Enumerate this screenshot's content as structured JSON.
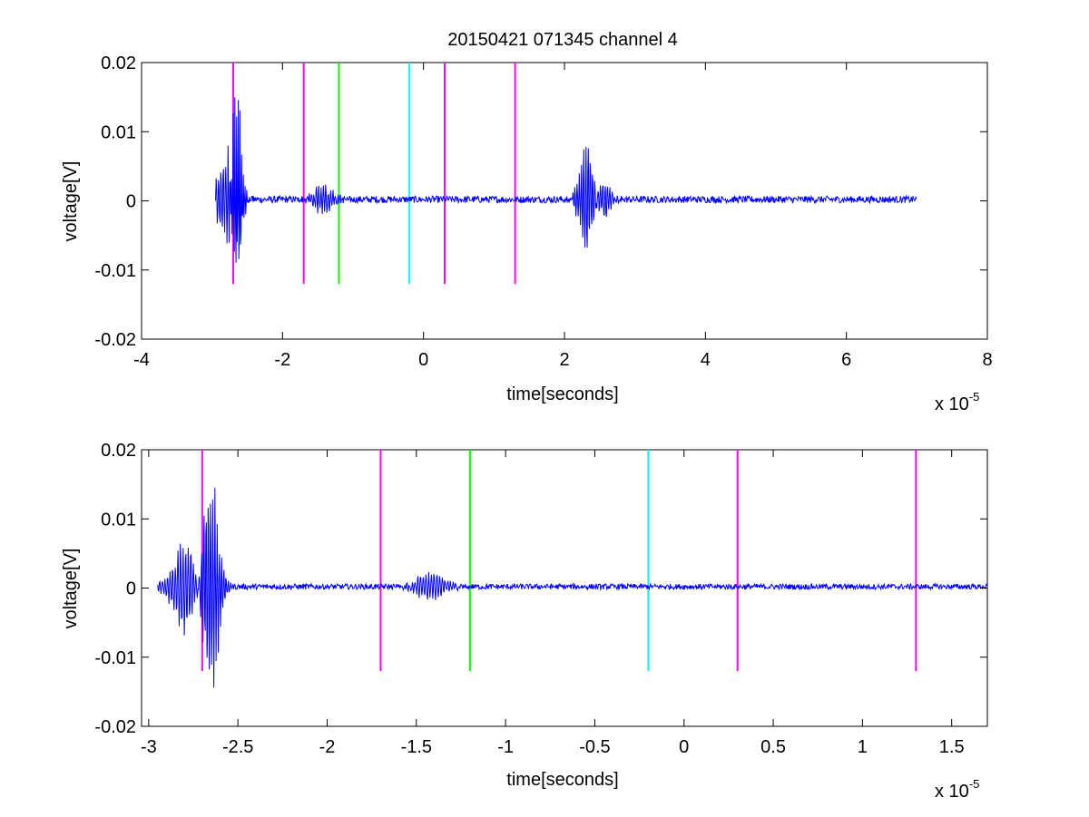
{
  "figure": {
    "title": "20150421 071345 channel 4"
  },
  "chart_data": [
    {
      "type": "line",
      "xlabel": "time[seconds]",
      "ylabel": "voltage[V]",
      "x_exponent_label": "x 10",
      "x_exponent_power": "-5",
      "xlim": [
        -4,
        8
      ],
      "ylim": [
        -0.02,
        0.02
      ],
      "xticks": [
        -4,
        -2,
        0,
        2,
        4,
        6,
        8
      ],
      "xtick_labels": [
        "-4",
        "-2",
        "0",
        "2",
        "4",
        "6",
        "8"
      ],
      "yticks": [
        0.02,
        0.01,
        0,
        -0.01,
        -0.02
      ],
      "ytick_labels": [
        "0.02",
        "0.01",
        "0",
        "-0.01",
        "-0.02"
      ],
      "grid": false,
      "series": [
        {
          "color": "#0000ff",
          "x_range": [
            -2.95,
            7.0
          ],
          "bursts": [
            {
              "center": -2.78,
              "width": 0.12,
              "amp": 0.0075
            },
            {
              "center": -2.65,
              "width": 0.06,
              "amp": 0.018
            },
            {
              "center": -1.42,
              "width": 0.12,
              "amp": 0.0025
            },
            {
              "center": 2.32,
              "width": 0.1,
              "amp": 0.009
            },
            {
              "center": 2.5,
              "width": 0.12,
              "amp": 0.004
            }
          ],
          "noise_amplitude": 0.0005
        }
      ],
      "markers": [
        {
          "x": -2.7,
          "color": "#ff00ff"
        },
        {
          "x": -1.7,
          "color": "#ff00ff"
        },
        {
          "x": -1.2,
          "color": "#00ff00"
        },
        {
          "x": -0.2,
          "color": "#00ffff"
        },
        {
          "x": 0.3,
          "color": "#ff00ff"
        },
        {
          "x": 1.3,
          "color": "#ff00ff"
        }
      ],
      "marker_y_range": [
        -0.012,
        0.02
      ]
    },
    {
      "type": "line",
      "xlabel": "time[seconds]",
      "ylabel": "voltage[V]",
      "x_exponent_label": "x 10",
      "x_exponent_power": "-5",
      "xlim": [
        -3.04,
        1.7
      ],
      "ylim": [
        -0.02,
        0.02
      ],
      "xticks": [
        -3,
        -2.5,
        -2,
        -1.5,
        -1,
        -0.5,
        0,
        0.5,
        1,
        1.5
      ],
      "xtick_labels": [
        "-3",
        "-2.5",
        "-2",
        "-1.5",
        "-1",
        "-0.5",
        "0",
        "0.5",
        "1",
        "1.5"
      ],
      "yticks": [
        0.02,
        0.01,
        0,
        -0.01,
        -0.02
      ],
      "ytick_labels": [
        "0.02",
        "0.01",
        "0",
        "-0.01",
        "-0.02"
      ],
      "grid": false,
      "series": [
        {
          "color": "#0000ff",
          "x_range": [
            -2.95,
            1.7
          ],
          "bursts": [
            {
              "center": -2.8,
              "width": 0.06,
              "amp": 0.0075
            },
            {
              "center": -2.65,
              "width": 0.04,
              "amp": 0.018
            },
            {
              "center": -1.42,
              "width": 0.07,
              "amp": 0.0025
            }
          ],
          "noise_amplitude": 0.0004
        }
      ],
      "markers": [
        {
          "x": -2.7,
          "color": "#ff00ff"
        },
        {
          "x": -1.7,
          "color": "#ff00ff"
        },
        {
          "x": -1.2,
          "color": "#00ff00"
        },
        {
          "x": -0.2,
          "color": "#00ffff"
        },
        {
          "x": 0.3,
          "color": "#ff00ff"
        },
        {
          "x": 1.3,
          "color": "#ff00ff"
        }
      ],
      "marker_y_range": [
        -0.012,
        0.02
      ]
    }
  ]
}
